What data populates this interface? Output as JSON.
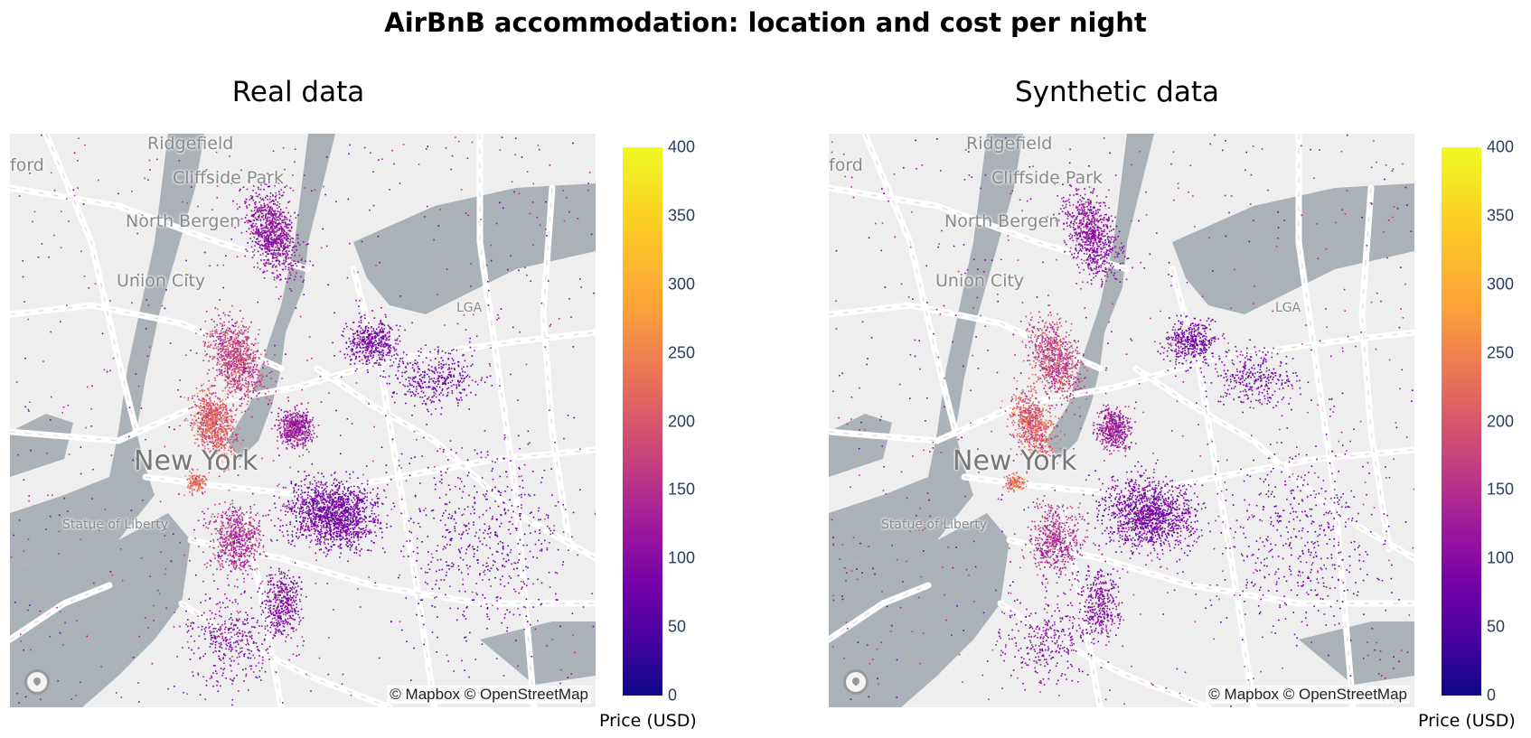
{
  "title": "AirBnB accommodation: location and cost per night",
  "panels": [
    {
      "title": "Real data",
      "attribution": "© Mapbox © OpenStreetMap",
      "colorbar_title": "Price (USD)",
      "colorbar_ticks": [
        "400",
        "350",
        "300",
        "250",
        "200",
        "150",
        "100",
        "50",
        "0"
      ],
      "places": {
        "ridgefield": "Ridgefield",
        "ford": "ford",
        "cliffside_park": "Cliffside Park",
        "north_bergen": "North Bergen",
        "union_city": "Union City",
        "lga": "LGA",
        "new_york": "New York",
        "statue_of_liberty": "Statue of Liberty"
      }
    },
    {
      "title": "Synthetic data",
      "attribution": "© Mapbox © OpenStreetMap",
      "colorbar_title": "Price (USD)",
      "colorbar_ticks": [
        "400",
        "350",
        "300",
        "250",
        "200",
        "150",
        "100",
        "50",
        "0"
      ],
      "places": {
        "ridgefield": "Ridgefield",
        "ford": "ford",
        "cliffside_park": "Cliffside Park",
        "north_bergen": "North Bergen",
        "union_city": "Union City",
        "lga": "LGA",
        "new_york": "New York",
        "statue_of_liberty": "Statue of Liberty"
      }
    }
  ],
  "colors": {
    "scale": [
      "#0d0887",
      "#46039f",
      "#7201a8",
      "#9c179e",
      "#bd3786",
      "#d8576b",
      "#ed7953",
      "#fb9f3a",
      "#fdca26",
      "#f0f921"
    ],
    "water": "#aab2b8",
    "land": "#eeeeee",
    "roads": "#ffffff"
  },
  "colorbar_range": [
    0,
    400
  ]
}
